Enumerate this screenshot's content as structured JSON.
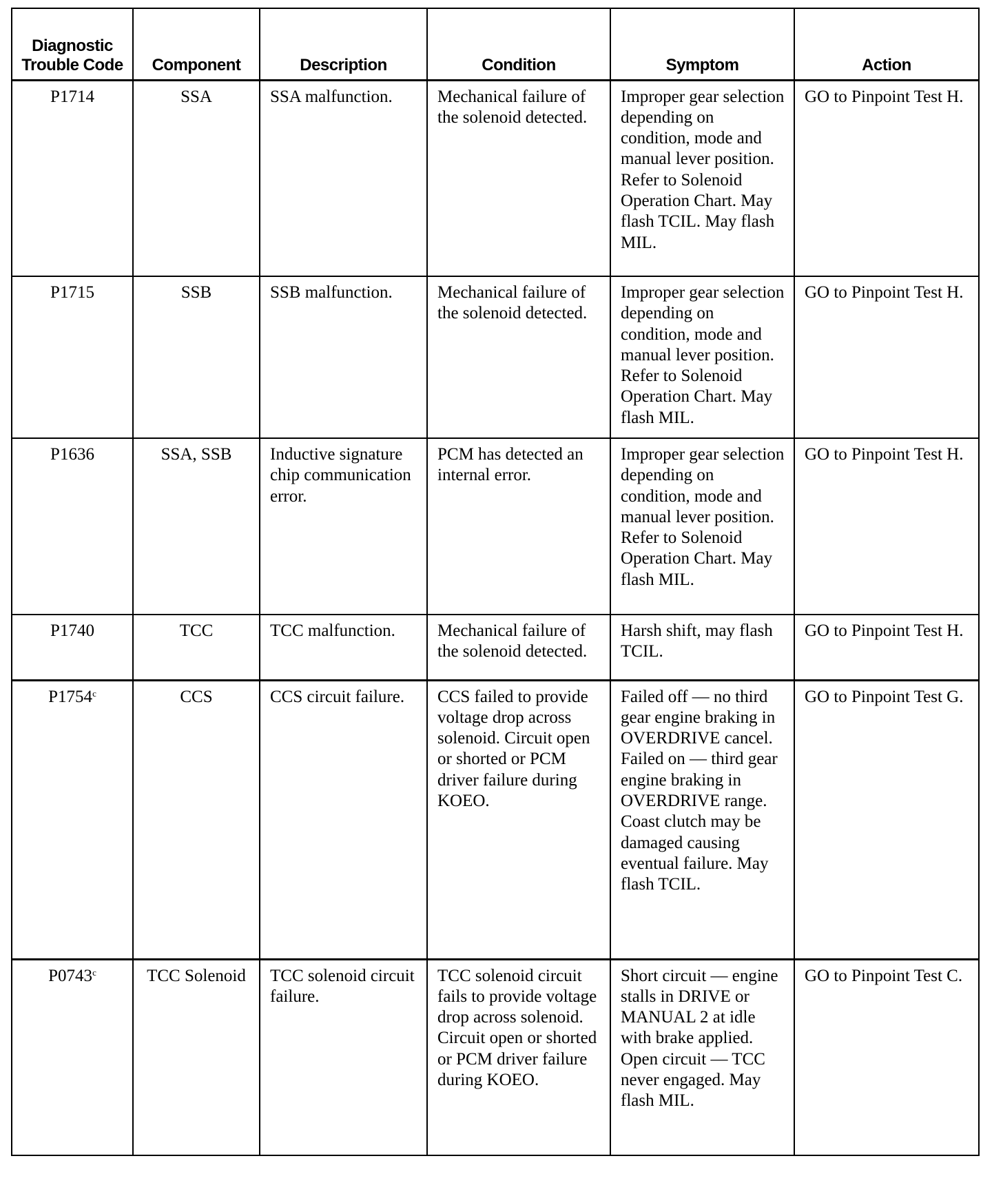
{
  "table": {
    "headers": [
      "Diagnostic Trouble Code",
      "Component",
      "Description",
      "Condition",
      "Symptom",
      "Action"
    ],
    "rows": [
      {
        "code": "P1714",
        "code_note": "",
        "component": "SSA",
        "description": "SSA malfunction.",
        "condition": "Mechanical failure of the solenoid detected.",
        "symptom": "Improper gear selection depending on condition, mode and manual lever position. Refer to Solenoid Operation Chart. May flash TCIL. May flash MIL.",
        "action": "GO to Pinpoint Test H."
      },
      {
        "code": "P1715",
        "code_note": "",
        "component": "SSB",
        "description": "SSB malfunction.",
        "condition": "Mechanical failure of the solenoid detected.",
        "symptom": "Improper gear selection depending on condition, mode and manual lever position. Refer to Solenoid Operation Chart. May flash MIL.",
        "action": "GO to Pinpoint Test H."
      },
      {
        "code": "P1636",
        "code_note": "",
        "component": "SSA, SSB",
        "description": "Inductive signature chip communication error.",
        "condition": "PCM has detected an internal error.",
        "symptom": "Improper gear selection depending on condition, mode and manual lever position. Refer to Solenoid Operation Chart. May flash MIL.",
        "action": "GO to Pinpoint Test H."
      },
      {
        "code": "P1740",
        "code_note": "",
        "component": "TCC",
        "description": "TCC malfunction.",
        "condition": "Mechanical failure of the solenoid detected.",
        "symptom": "Harsh shift, may flash TCIL.",
        "action": "GO to Pinpoint Test H."
      },
      {
        "code": "P1754",
        "code_note": "c",
        "component": "CCS",
        "description": "CCS circuit failure.",
        "condition": "CCS failed to provide voltage drop across solenoid. Circuit open or shorted or PCM driver failure during KOEO.",
        "symptom": "Failed off — no third gear engine braking in OVERDRIVE cancel. Failed on — third gear engine braking in OVERDRIVE range. Coast clutch may be damaged causing eventual failure. May flash TCIL.",
        "action": "GO to Pinpoint Test G."
      },
      {
        "code": "P0743",
        "code_note": "c",
        "component": "TCC Solenoid",
        "description": "TCC solenoid circuit failure.",
        "condition": "TCC solenoid circuit fails to provide voltage drop across solenoid. Circuit open or shorted or PCM driver failure during KOEO.",
        "symptom": "Short circuit — engine stalls in DRIVE or MANUAL 2 at idle with brake applied. Open circuit — TCC never engaged. May flash MIL.",
        "action": "GO to Pinpoint Test C."
      }
    ]
  }
}
